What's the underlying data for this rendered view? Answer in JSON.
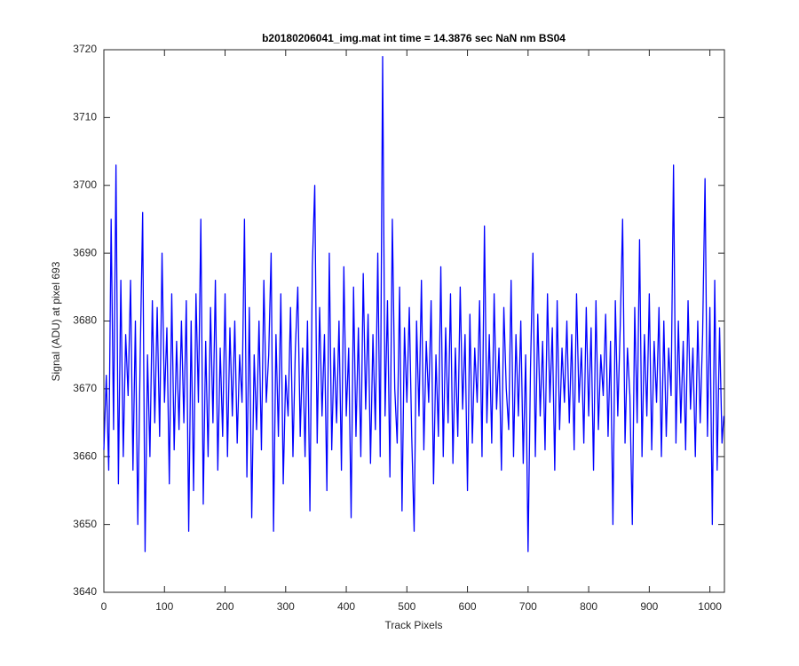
{
  "chart_data": {
    "type": "line",
    "title": "b20180206041_img.mat int time = 14.3876 sec  NaN nm BS04",
    "x_label": "Track Pixels",
    "y_label": "Signal (ADU) at pixel 693",
    "color": "#0000ff",
    "xlim": [
      0,
      1024
    ],
    "ylim": [
      3640,
      3720
    ],
    "xticks": [
      0,
      100,
      200,
      300,
      400,
      500,
      600,
      700,
      800,
      900,
      1000
    ],
    "yticks": [
      3640,
      3650,
      3660,
      3670,
      3680,
      3690,
      3700,
      3710,
      3720
    ],
    "grid": false,
    "x": [
      0,
      4,
      8,
      12,
      16,
      20,
      24,
      28,
      32,
      36,
      40,
      44,
      48,
      52,
      56,
      60,
      64,
      68,
      72,
      76,
      80,
      84,
      88,
      92,
      96,
      100,
      104,
      108,
      112,
      116,
      120,
      124,
      128,
      132,
      136,
      140,
      144,
      148,
      152,
      156,
      160,
      164,
      168,
      172,
      176,
      180,
      184,
      188,
      192,
      196,
      200,
      204,
      208,
      212,
      216,
      220,
      224,
      228,
      232,
      236,
      240,
      244,
      248,
      252,
      256,
      260,
      264,
      268,
      272,
      276,
      280,
      284,
      288,
      292,
      296,
      300,
      304,
      308,
      312,
      316,
      320,
      324,
      328,
      332,
      336,
      340,
      344,
      348,
      352,
      356,
      360,
      364,
      368,
      372,
      376,
      380,
      384,
      388,
      392,
      396,
      400,
      404,
      408,
      412,
      416,
      420,
      424,
      428,
      432,
      436,
      440,
      444,
      448,
      452,
      456,
      460,
      464,
      468,
      472,
      476,
      480,
      484,
      488,
      492,
      496,
      500,
      504,
      508,
      512,
      516,
      520,
      524,
      528,
      532,
      536,
      540,
      544,
      548,
      552,
      556,
      560,
      564,
      568,
      572,
      576,
      580,
      584,
      588,
      592,
      596,
      600,
      604,
      608,
      612,
      616,
      620,
      624,
      628,
      632,
      636,
      640,
      644,
      648,
      652,
      656,
      660,
      664,
      668,
      672,
      676,
      680,
      684,
      688,
      692,
      696,
      700,
      704,
      708,
      712,
      716,
      720,
      724,
      728,
      732,
      736,
      740,
      744,
      748,
      752,
      756,
      760,
      764,
      768,
      772,
      776,
      780,
      784,
      788,
      792,
      796,
      800,
      804,
      808,
      812,
      816,
      820,
      824,
      828,
      832,
      836,
      840,
      844,
      848,
      852,
      856,
      860,
      864,
      868,
      872,
      876,
      880,
      884,
      888,
      892,
      896,
      900,
      904,
      908,
      912,
      916,
      920,
      924,
      928,
      932,
      936,
      940,
      944,
      948,
      952,
      956,
      960,
      964,
      968,
      972,
      976,
      980,
      984,
      988,
      992,
      996,
      1000,
      1004,
      1008,
      1012,
      1016,
      1020,
      1023
    ],
    "values": [
      3661,
      3672,
      3658,
      3695,
      3664,
      3703,
      3656,
      3686,
      3660,
      3678,
      3669,
      3686,
      3658,
      3680,
      3650,
      3675,
      3696,
      3646,
      3675,
      3660,
      3683,
      3665,
      3682,
      3663,
      3690,
      3668,
      3679,
      3656,
      3684,
      3661,
      3677,
      3664,
      3680,
      3665,
      3683,
      3649,
      3680,
      3655,
      3684,
      3668,
      3695,
      3653,
      3677,
      3660,
      3682,
      3665,
      3686,
      3658,
      3676,
      3663,
      3684,
      3660,
      3679,
      3666,
      3680,
      3662,
      3675,
      3668,
      3695,
      3657,
      3682,
      3651,
      3675,
      3664,
      3680,
      3661,
      3686,
      3668,
      3675,
      3690,
      3649,
      3678,
      3663,
      3684,
      3656,
      3672,
      3666,
      3682,
      3660,
      3676,
      3685,
      3663,
      3676,
      3660,
      3680,
      3652,
      3688,
      3700,
      3662,
      3682,
      3666,
      3678,
      3655,
      3690,
      3661,
      3676,
      3665,
      3680,
      3658,
      3688,
      3666,
      3676,
      3651,
      3685,
      3663,
      3679,
      3660,
      3687,
      3667,
      3681,
      3659,
      3678,
      3664,
      3690,
      3660,
      3719,
      3666,
      3683,
      3657,
      3695,
      3670,
      3662,
      3685,
      3652,
      3679,
      3668,
      3682,
      3663,
      3649,
      3680,
      3666,
      3686,
      3661,
      3677,
      3668,
      3683,
      3656,
      3675,
      3663,
      3688,
      3660,
      3679,
      3665,
      3684,
      3659,
      3676,
      3663,
      3685,
      3667,
      3678,
      3655,
      3681,
      3662,
      3676,
      3668,
      3683,
      3660,
      3694,
      3665,
      3678,
      3662,
      3684,
      3667,
      3676,
      3658,
      3682,
      3670,
      3664,
      3686,
      3660,
      3678,
      3666,
      3680,
      3659,
      3675,
      3646,
      3673,
      3690,
      3660,
      3681,
      3666,
      3677,
      3661,
      3684,
      3668,
      3679,
      3658,
      3683,
      3664,
      3676,
      3668,
      3680,
      3665,
      3678,
      3661,
      3684,
      3668,
      3676,
      3662,
      3682,
      3666,
      3679,
      3658,
      3683,
      3664,
      3675,
      3669,
      3681,
      3663,
      3677,
      3650,
      3683,
      3666,
      3679,
      3695,
      3662,
      3676,
      3669,
      3650,
      3682,
      3665,
      3692,
      3660,
      3678,
      3666,
      3684,
      3661,
      3677,
      3668,
      3682,
      3660,
      3680,
      3663,
      3676,
      3669,
      3703,
      3662,
      3680,
      3665,
      3677,
      3661,
      3683,
      3667,
      3676,
      3660,
      3680,
      3665,
      3678,
      3701,
      3663,
      3682,
      3650,
      3686,
      3658,
      3679,
      3662,
      3666
    ]
  }
}
